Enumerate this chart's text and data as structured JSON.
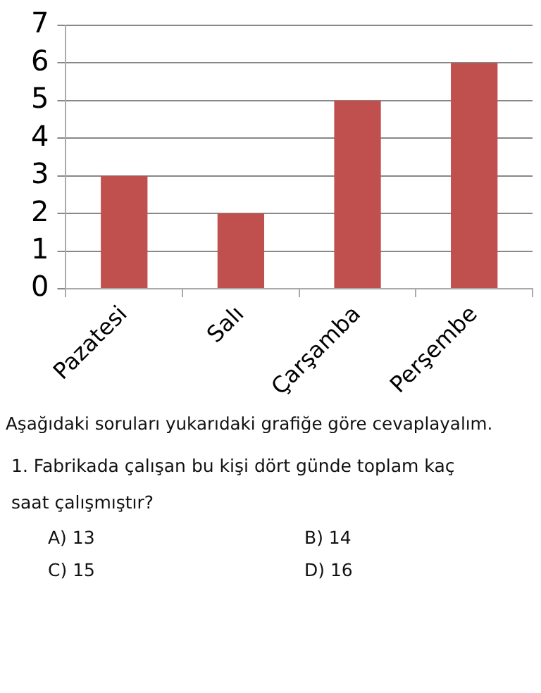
{
  "chart_data": {
    "type": "bar",
    "categories": [
      "Pazatesi",
      "Salı",
      "Çarşamba",
      "Perşembe"
    ],
    "values": [
      3,
      2,
      5,
      6
    ],
    "color": "#c0504d",
    "ylim": [
      0,
      7
    ],
    "yticks": [
      0,
      1,
      2,
      3,
      4,
      5,
      6,
      7
    ],
    "grid": "y",
    "legend": false,
    "annotations": [
      "Aşağıdaki soruları yukarıdaki grafiğe göre cevaplayalım.",
      "1. Fabrikada çalışan bu kişi dört günde toplam kaç saat çalışmıştır?",
      "A) 13",
      "B) 14",
      "C) 15",
      "D) 16"
    ]
  }
}
